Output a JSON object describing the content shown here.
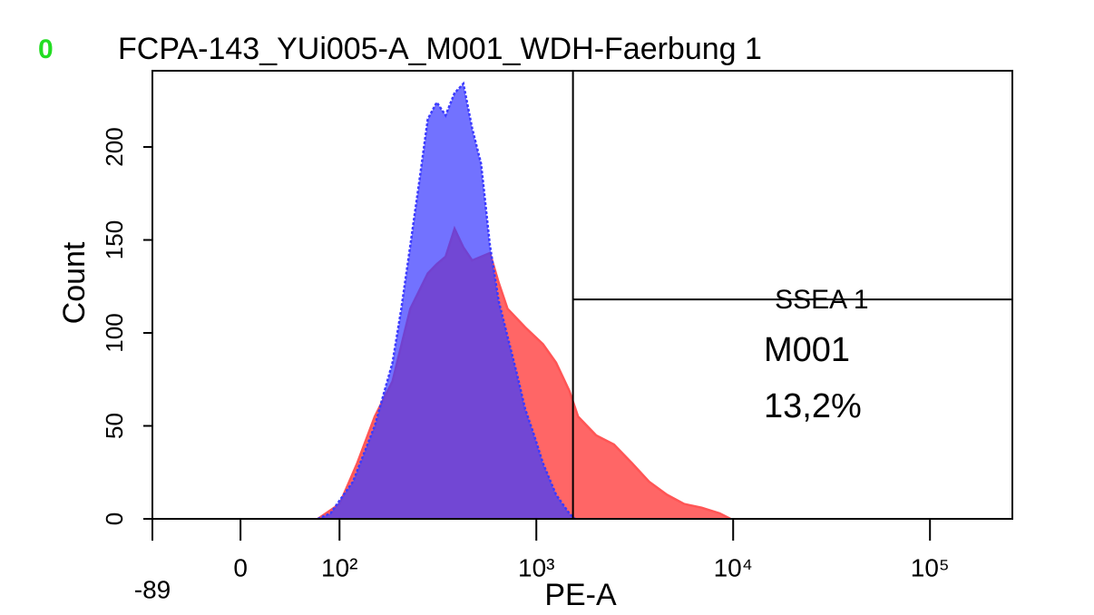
{
  "chart_data": {
    "type": "histogram-overlay",
    "status": "0",
    "title": "FCPA-143_YUi005-A_M001_WDH-Faerbung 1",
    "xlabel": "PE-A",
    "ylabel": "Count",
    "x_scale": "biexponential",
    "xlim": [
      -89,
      262144
    ],
    "xticks": [
      {
        "value": -89,
        "label": "-89"
      },
      0,
      {
        "value": 100,
        "label": "10²"
      },
      {
        "value": 1000,
        "label": "10³"
      },
      {
        "value": 10000,
        "label": "10⁴"
      },
      {
        "value": 100000,
        "label": "10⁵"
      }
    ],
    "ylim": [
      0,
      241
    ],
    "yticks": [
      0,
      50,
      100,
      150,
      200
    ],
    "series": [
      {
        "color": "#ff5555",
        "x": [
          78,
          100,
          123,
          151,
          186,
          229,
          281,
          312,
          346,
          384,
          426,
          472,
          581,
          644,
          714,
          878,
          1080,
          1260,
          1470,
          1630,
          2010,
          2480,
          3060,
          3740,
          4610,
          5640,
          6920,
          8540,
          9700
        ],
        "values": [
          0,
          8,
          30,
          55,
          74,
          113,
          132,
          137,
          141,
          156,
          146,
          139,
          143,
          127,
          113,
          103,
          94,
          84,
          69,
          55,
          45,
          40,
          30,
          20,
          13,
          8,
          6,
          3,
          0
        ]
      },
      {
        "color": "#3b3bff",
        "x": [
          78,
          91,
          117,
          151,
          186,
          206,
          229,
          254,
          281,
          312,
          346,
          384,
          426,
          472,
          524,
          581,
          644,
          714,
          792,
          878,
          974,
          1080,
          1260,
          1470,
          1570
        ],
        "values": [
          0,
          3,
          20,
          50,
          84,
          113,
          147,
          181,
          215,
          224,
          217,
          229,
          234,
          210,
          191,
          147,
          117,
          98,
          79,
          59,
          45,
          30,
          13,
          3,
          0
        ]
      }
    ],
    "marker": {
      "label": "SSEA 1",
      "x_start": 1535,
      "level": 118
    },
    "annotations": [
      "M001",
      "13,2%"
    ]
  }
}
